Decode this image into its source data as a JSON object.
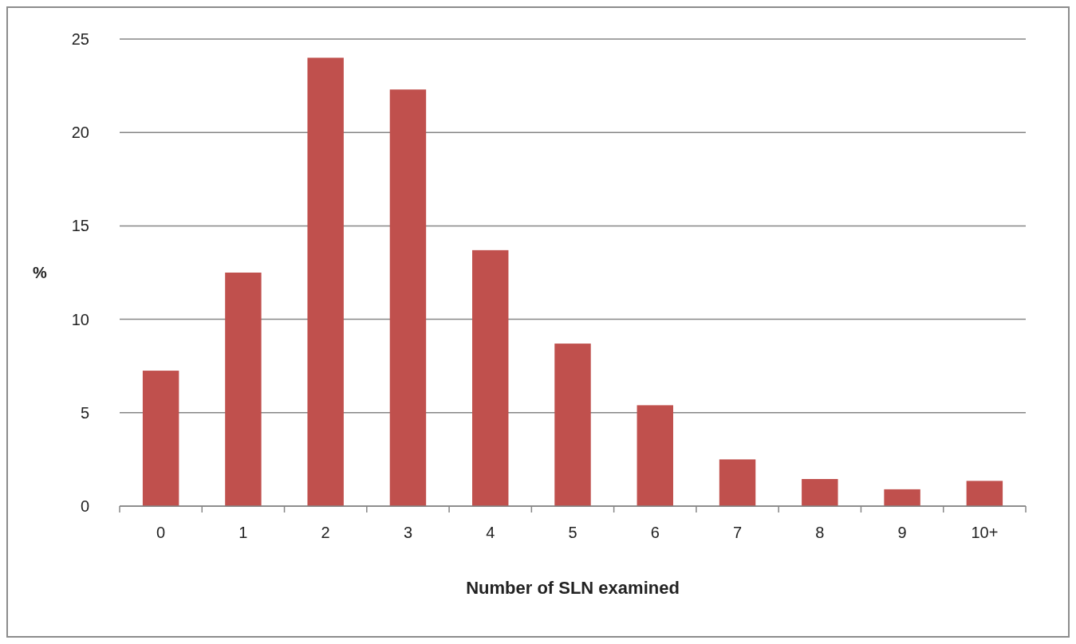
{
  "chart_data": {
    "type": "bar",
    "xlabel": "Number of SLN examined",
    "ylabel": "%",
    "categories": [
      "0",
      "1",
      "2",
      "3",
      "4",
      "5",
      "6",
      "7",
      "8",
      "9",
      "10+"
    ],
    "values": [
      7.25,
      12.5,
      24.0,
      22.3,
      13.7,
      8.7,
      5.4,
      2.5,
      1.45,
      0.9,
      1.35
    ],
    "color": "#c0504d",
    "ylim": [
      0,
      25
    ],
    "yticks": [
      0,
      5,
      10,
      15,
      20,
      25
    ],
    "grid": "y"
  }
}
